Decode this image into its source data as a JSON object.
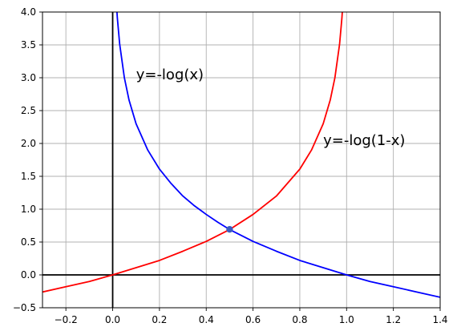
{
  "chart_data": {
    "type": "line",
    "title": "",
    "xlabel": "",
    "ylabel": "",
    "xlim": [
      -0.3,
      1.4
    ],
    "ylim": [
      -0.5,
      4.0
    ],
    "grid": true,
    "xticks": [
      -0.2,
      0.0,
      0.2,
      0.4,
      0.6,
      0.8,
      1.0,
      1.2,
      1.4
    ],
    "xtick_labels": [
      "−0.2",
      "0.0",
      "0.2",
      "0.4",
      "0.6",
      "0.8",
      "1.0",
      "1.2",
      "1.4"
    ],
    "yticks": [
      -0.5,
      0.0,
      0.5,
      1.0,
      1.5,
      2.0,
      2.5,
      3.0,
      3.5,
      4.0
    ],
    "ytick_labels": [
      "−0.5",
      "0.0",
      "0.5",
      "1.0",
      "1.5",
      "2.0",
      "2.5",
      "3.0",
      "3.5",
      "4.0"
    ],
    "series": [
      {
        "color": "#0000ff",
        "x": [
          0.018,
          0.02,
          0.03,
          0.05,
          0.07,
          0.1,
          0.15,
          0.2,
          0.25,
          0.3,
          0.35,
          0.4,
          0.45,
          0.5,
          0.6,
          0.7,
          0.8,
          0.9,
          1.0,
          1.1,
          1.2,
          1.3,
          1.4
        ],
        "y": [
          4.02,
          3.91,
          3.51,
          3.0,
          2.66,
          2.3,
          1.9,
          1.61,
          1.39,
          1.2,
          1.05,
          0.92,
          0.8,
          0.69,
          0.51,
          0.36,
          0.22,
          0.11,
          0.0,
          -0.1,
          -0.18,
          -0.26,
          -0.34
        ]
      },
      {
        "color": "#ff0000",
        "x": [
          -0.3,
          -0.2,
          -0.1,
          0.0,
          0.1,
          0.2,
          0.3,
          0.4,
          0.5,
          0.6,
          0.7,
          0.8,
          0.85,
          0.9,
          0.93,
          0.95,
          0.97,
          0.98,
          0.982
        ],
        "y": [
          -0.26,
          -0.18,
          -0.1,
          0.0,
          0.11,
          0.22,
          0.36,
          0.51,
          0.69,
          0.92,
          1.2,
          1.61,
          1.9,
          2.3,
          2.66,
          3.0,
          3.51,
          3.91,
          4.02
        ]
      }
    ],
    "points": [
      {
        "x": 0.5,
        "y": 0.693,
        "color": "#3b5bbf"
      }
    ],
    "annotations": [
      {
        "text": "y=-log(x)",
        "x": 0.1,
        "y": 3.0
      },
      {
        "text": "y=-log(1-x)",
        "x": 0.9,
        "y": 2.0
      }
    ],
    "reference_lines": [
      {
        "orientation": "vertical",
        "value": 0.0,
        "color": "#000000"
      },
      {
        "orientation": "horizontal",
        "value": 0.0,
        "color": "#000000"
      }
    ]
  }
}
